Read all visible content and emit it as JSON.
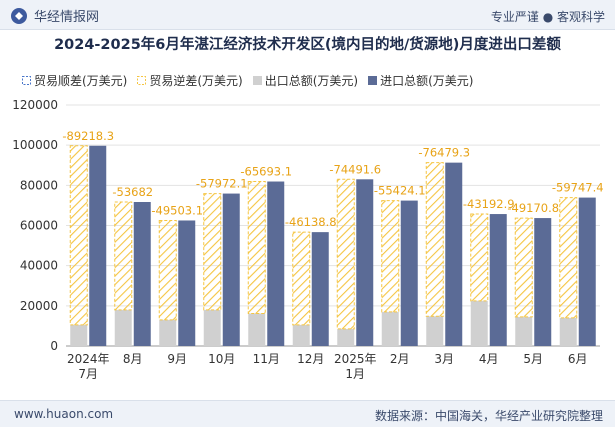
{
  "header": {
    "brand": "华经情报网",
    "tagline": "专业严谨 ● 客观科学"
  },
  "chart_data": {
    "type": "bar",
    "title": "2024-2025年6月年湛江经济技术开发区(境内目的地/货源地)月度进出口差额",
    "legend": [
      "贸易顺差(万美元)",
      "贸易逆差(万美元)",
      "出口总额(万美元)",
      "进口总额(万美元)"
    ],
    "categories": [
      "2024年\n7月",
      "8月",
      "9月",
      "10月",
      "11月",
      "12月",
      "2025年\n1月",
      "2月",
      "3月",
      "4月",
      "5月",
      "6月"
    ],
    "ylim": [
      0,
      120000
    ],
    "yticks": [
      0,
      20000,
      40000,
      60000,
      80000,
      100000,
      120000
    ],
    "series": [
      {
        "name": "出口总额(万美元)",
        "values": [
          10500,
          18000,
          13000,
          18000,
          16200,
          10500,
          8500,
          17000,
          14800,
          22500,
          14500,
          14000
        ]
      },
      {
        "name": "进口总额(万美元)",
        "values": [
          99700,
          71700,
          62500,
          75900,
          81900,
          56700,
          83000,
          72400,
          91300,
          65700,
          63700,
          73900
        ]
      },
      {
        "name": "贸易逆差(万美元)",
        "values": [
          -89218.3,
          -53682,
          -49503.1,
          -57972.1,
          -65693.1,
          -46138.8,
          -74491.6,
          -55424.1,
          -76479.3,
          -43192.9,
          -49170.8,
          -59747.4
        ]
      }
    ],
    "colors": {
      "export": "#d0d0d0",
      "import": "#5b6b96",
      "deficit_stroke": "#f5c542",
      "surplus": "#4a76c9",
      "label": "#e8a317"
    }
  },
  "footer": {
    "site": "www.huaon.com",
    "source": "数据来源：中国海关，华经产业研究院整理"
  }
}
